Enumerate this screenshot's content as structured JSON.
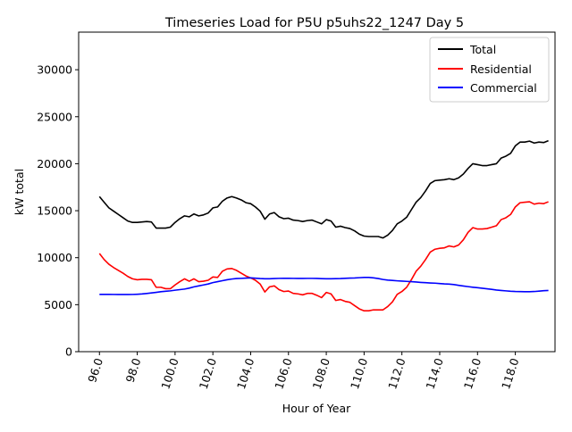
{
  "chart_data": {
    "type": "line",
    "title": "Timeseries Load for P5U p5uhs22_1247  Day 5",
    "xlabel": "Hour of Year",
    "ylabel": "kW total",
    "xlim": [
      94.9,
      120.1
    ],
    "ylim": [
      0,
      34000
    ],
    "grid": false,
    "legend_position": "upper-right",
    "x_ticks": [
      96,
      98,
      100,
      102,
      104,
      106,
      108,
      110,
      112,
      114,
      116,
      118
    ],
    "x_tick_labels": [
      "96.0",
      "98.0",
      "100.0",
      "102.0",
      "104.0",
      "106.0",
      "108.0",
      "110.0",
      "112.0",
      "114.0",
      "116.0",
      "118.0"
    ],
    "y_ticks": [
      0,
      5000,
      10000,
      15000,
      20000,
      25000,
      30000
    ],
    "y_tick_labels": [
      "0",
      "5000",
      "10000",
      "15000",
      "20000",
      "25000",
      "30000"
    ],
    "x": [
      96.0,
      96.25,
      96.5,
      96.75,
      97.0,
      97.25,
      97.5,
      97.75,
      98.0,
      98.25,
      98.5,
      98.75,
      99.0,
      99.25,
      99.5,
      99.75,
      100.0,
      100.25,
      100.5,
      100.75,
      101.0,
      101.25,
      101.5,
      101.75,
      102.0,
      102.25,
      102.5,
      102.75,
      103.0,
      103.25,
      103.5,
      103.75,
      104.0,
      104.25,
      104.5,
      104.75,
      105.0,
      105.25,
      105.5,
      105.75,
      106.0,
      106.25,
      106.5,
      106.75,
      107.0,
      107.25,
      107.5,
      107.75,
      108.0,
      108.25,
      108.5,
      108.75,
      109.0,
      109.25,
      109.5,
      109.75,
      110.0,
      110.25,
      110.5,
      110.75,
      111.0,
      111.25,
      111.5,
      111.75,
      112.0,
      112.25,
      112.5,
      112.75,
      113.0,
      113.25,
      113.5,
      113.75,
      114.0,
      114.25,
      114.5,
      114.75,
      115.0,
      115.25,
      115.5,
      115.75,
      116.0,
      116.25,
      116.5,
      116.75,
      117.0,
      117.25,
      117.5,
      117.75,
      118.0,
      118.25,
      118.5,
      118.75,
      119.0,
      119.25,
      119.5,
      119.75
    ],
    "series": [
      {
        "name": "Total",
        "color": "#000000",
        "values": [
          16500,
          15900,
          15300,
          14950,
          14600,
          14250,
          13900,
          13750,
          13750,
          13800,
          13850,
          13800,
          13150,
          13150,
          13150,
          13250,
          13750,
          14150,
          14450,
          14350,
          14650,
          14450,
          14550,
          14750,
          15300,
          15400,
          16000,
          16350,
          16500,
          16350,
          16150,
          15850,
          15750,
          15400,
          14950,
          14100,
          14650,
          14800,
          14350,
          14150,
          14200,
          14000,
          13950,
          13850,
          13950,
          14000,
          13800,
          13600,
          14050,
          13900,
          13250,
          13350,
          13200,
          13100,
          12850,
          12500,
          12300,
          12250,
          12250,
          12250,
          12100,
          12400,
          12900,
          13600,
          13900,
          14300,
          15100,
          15900,
          16400,
          17100,
          17900,
          18200,
          18250,
          18300,
          18400,
          18300,
          18500,
          18900,
          19500,
          20000,
          19900,
          19800,
          19800,
          19900,
          20000,
          20600,
          20800,
          21100,
          21900,
          22300,
          22300,
          22400,
          22200,
          22300,
          22250,
          22450
        ]
      },
      {
        "name": "Residential",
        "color": "#ff0000",
        "values": [
          10450,
          9800,
          9300,
          8950,
          8650,
          8350,
          8000,
          7750,
          7650,
          7700,
          7700,
          7650,
          6850,
          6850,
          6700,
          6700,
          7100,
          7450,
          7750,
          7500,
          7750,
          7450,
          7500,
          7600,
          7950,
          7900,
          8550,
          8800,
          8850,
          8650,
          8350,
          8050,
          7850,
          7600,
          7200,
          6350,
          6900,
          7000,
          6600,
          6400,
          6450,
          6200,
          6150,
          6050,
          6200,
          6200,
          6000,
          5750,
          6300,
          6150,
          5450,
          5550,
          5350,
          5250,
          4900,
          4550,
          4350,
          4350,
          4450,
          4450,
          4450,
          4800,
          5300,
          6100,
          6400,
          6850,
          7650,
          8550,
          9100,
          9800,
          10600,
          10900,
          11000,
          11050,
          11250,
          11150,
          11350,
          11900,
          12700,
          13200,
          13050,
          13050,
          13100,
          13250,
          13400,
          14050,
          14250,
          14600,
          15400,
          15850,
          15900,
          15950,
          15700,
          15800,
          15750,
          15950
        ]
      },
      {
        "name": "Commercial",
        "color": "#0000ff",
        "values": [
          6100,
          6100,
          6100,
          6090,
          6080,
          6080,
          6080,
          6090,
          6110,
          6140,
          6190,
          6250,
          6310,
          6380,
          6430,
          6470,
          6540,
          6600,
          6660,
          6760,
          6900,
          7000,
          7100,
          7200,
          7350,
          7450,
          7550,
          7650,
          7730,
          7780,
          7800,
          7830,
          7850,
          7820,
          7780,
          7760,
          7760,
          7780,
          7800,
          7810,
          7810,
          7800,
          7790,
          7790,
          7800,
          7800,
          7790,
          7770,
          7760,
          7760,
          7770,
          7780,
          7810,
          7830,
          7840,
          7870,
          7900,
          7900,
          7850,
          7780,
          7680,
          7620,
          7580,
          7540,
          7510,
          7480,
          7450,
          7410,
          7370,
          7340,
          7310,
          7290,
          7250,
          7210,
          7190,
          7140,
          7060,
          6990,
          6920,
          6860,
          6810,
          6750,
          6690,
          6630,
          6560,
          6510,
          6470,
          6430,
          6400,
          6390,
          6380,
          6380,
          6400,
          6440,
          6490,
          6510
        ]
      }
    ]
  }
}
